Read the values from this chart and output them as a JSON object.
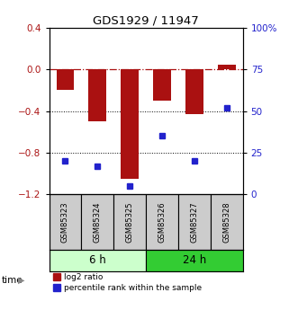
{
  "title": "GDS1929 / 11947",
  "samples": [
    "GSM85323",
    "GSM85324",
    "GSM85325",
    "GSM85326",
    "GSM85327",
    "GSM85328"
  ],
  "log2_ratio": [
    -0.2,
    -0.5,
    -1.05,
    -0.3,
    -0.43,
    0.05
  ],
  "percentile_rank": [
    20,
    17,
    5,
    35,
    20,
    52
  ],
  "left_ylim": [
    -1.2,
    0.4
  ],
  "right_ylim": [
    0,
    100
  ],
  "left_yticks": [
    0.4,
    0.0,
    -0.4,
    -0.8,
    -1.2
  ],
  "right_yticks": [
    100,
    75,
    50,
    25,
    0
  ],
  "bar_color": "#aa1111",
  "dot_color": "#2222cc",
  "group1_label": "6 h",
  "group2_label": "24 h",
  "group1_color": "#ccffcc",
  "group2_color": "#33cc33",
  "group1_indices": [
    0,
    1,
    2
  ],
  "group2_indices": [
    3,
    4,
    5
  ],
  "legend_bar_label": "log2 ratio",
  "legend_dot_label": "percentile rank within the sample",
  "sample_cell_color": "#cccccc",
  "background_color": "#ffffff"
}
